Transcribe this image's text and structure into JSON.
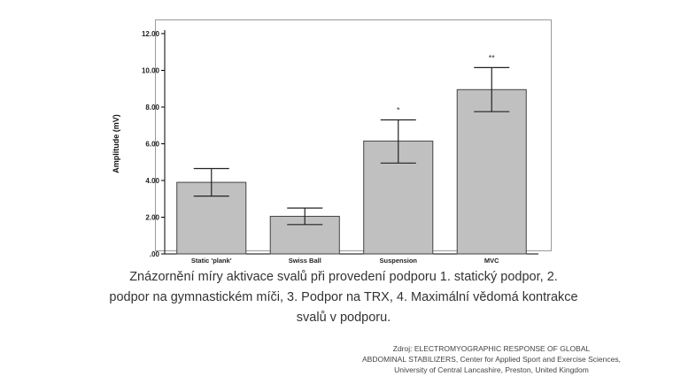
{
  "chart_data": {
    "type": "bar",
    "title": "",
    "xlabel": "",
    "ylabel": "Amplitude (mV)",
    "ylim": [
      0,
      12
    ],
    "yticks": [
      ".00",
      "2.00",
      "4.00",
      "6.00",
      "8.00",
      "10.00",
      "12.00"
    ],
    "categories": [
      "Static 'plank'",
      "Swiss Ball",
      "Suspension",
      "MVC"
    ],
    "values": [
      3.9,
      2.05,
      6.15,
      8.95
    ],
    "error_low": [
      3.15,
      1.6,
      4.95,
      7.75
    ],
    "error_high": [
      4.65,
      2.5,
      7.3,
      10.15
    ],
    "annotations": [
      "",
      "",
      "*",
      "**"
    ],
    "grid": false,
    "colors": {
      "bar_fill": "#c0c0c0",
      "bar_stroke": "#444444",
      "axis": "#000000"
    }
  },
  "caption": {
    "line1": "Znázornění míry aktivace svalů při provedení podporu 1. statický podpor, 2.",
    "line2": "podpor na gymnastickém míči, 3. Podpor na TRX, 4. Maximální vědomá kontrakce",
    "line3": "svalů v podporu."
  },
  "source": {
    "line1": "Zdroj: ELECTROMYOGRAPHIC RESPONSE OF GLOBAL",
    "line2": "ABDOMINAL STABILIZERS, Center for Applied Sport and Exercise Sciences,",
    "line3": "University of Central Lancashire, Preston, United Kingdom"
  }
}
